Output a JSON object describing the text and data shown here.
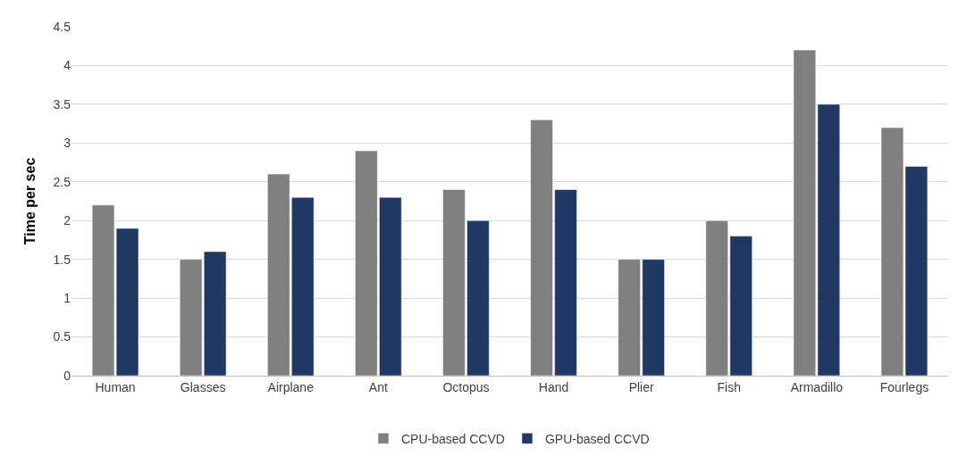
{
  "chart_data": {
    "type": "bar",
    "ylabel": "Time per sec",
    "categories": [
      "Human",
      "Glasses",
      "Airplane",
      "Ant",
      "Octopus",
      "Hand",
      "Plier",
      "Fish",
      "Armadillo",
      "Fourlegs"
    ],
    "series": [
      {
        "name": "CPU-based CCVD",
        "color": "#7f7f7f",
        "values": [
          2.2,
          1.5,
          2.6,
          2.9,
          2.4,
          3.3,
          1.5,
          2.0,
          4.2,
          3.2
        ]
      },
      {
        "name": "GPU-based CCVD",
        "color": "#1f3864",
        "values": [
          1.9,
          1.6,
          2.3,
          2.3,
          2.0,
          2.4,
          1.5,
          1.8,
          3.5,
          2.7
        ]
      }
    ],
    "ylim": [
      0,
      4.5
    ],
    "yticks": [
      0,
      0.5,
      1,
      1.5,
      2,
      2.5,
      3,
      3.5,
      4,
      4.5
    ],
    "grid": "y",
    "legend": "bottom"
  }
}
